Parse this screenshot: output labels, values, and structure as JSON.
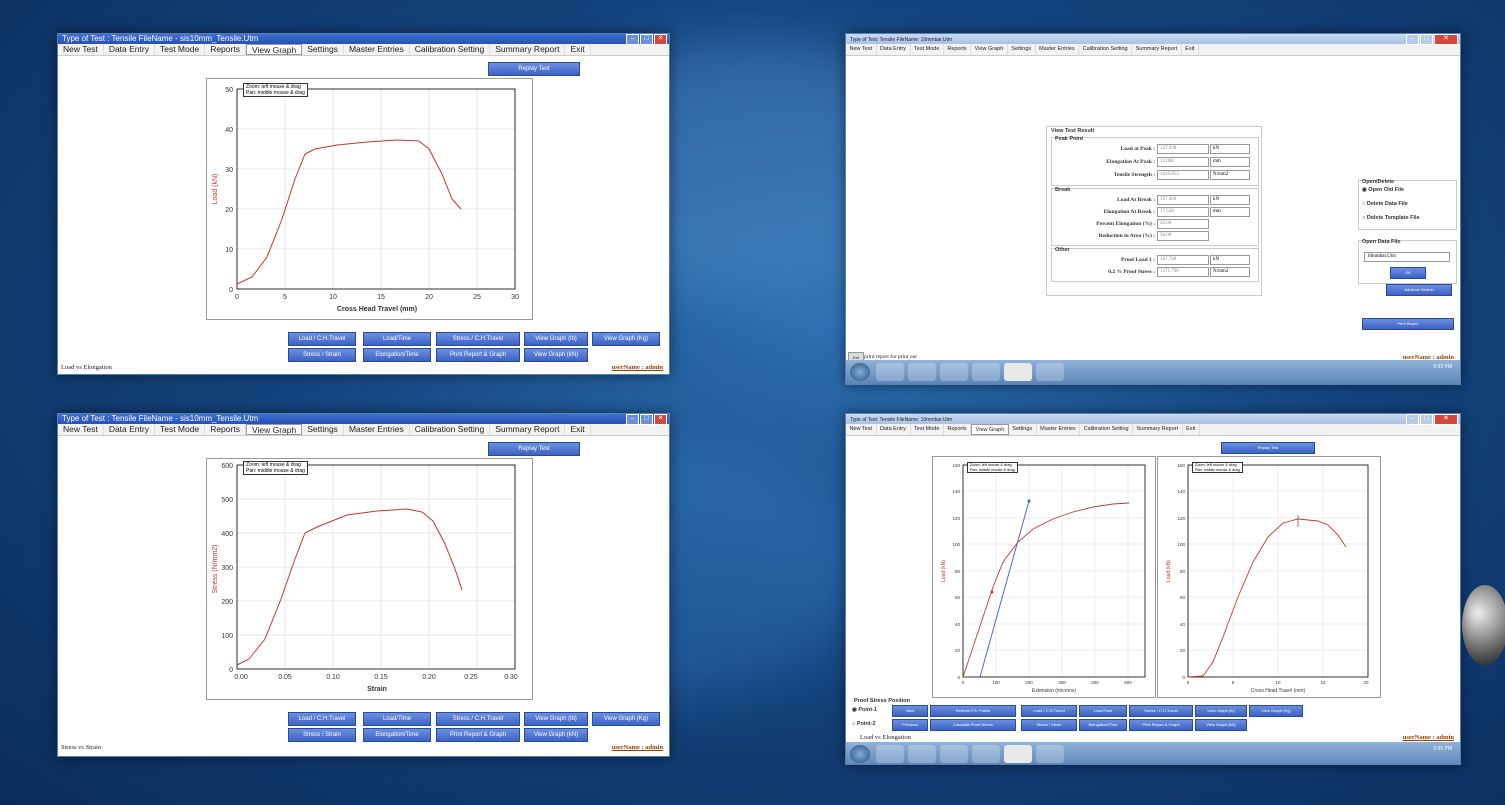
{
  "tl": {
    "title": "Type of Test : Tensile     FileName - sis10mm_Tensile.Utm",
    "menu": [
      "New Test",
      "Data Entry",
      "Test Mode",
      "Reports",
      "View Graph",
      "Settings",
      "Master Entries",
      "Calibration Setting",
      "Summary Report",
      "Exit"
    ],
    "replay": "Replay Test",
    "legend1": "Zoom: left mouse & drag",
    "legend2": "Pan: middle mouse & drag",
    "ylabel": "Load (kN)",
    "xlabel": "Cross Head Travel (mm)",
    "yticks": [
      "50",
      "40",
      "30",
      "20",
      "10",
      "0"
    ],
    "xticks": [
      "0",
      "5",
      "10",
      "15",
      "20",
      "25",
      "30"
    ],
    "buttons": [
      "Load / C.H.Travel",
      "Load/Time",
      "Stress / C.H.Travel",
      "View Graph (lb)",
      "View Graph (Kg)",
      "Stress / Strain",
      "Elongation/Time",
      "Print Report & Graph",
      "View Graph (kN)"
    ],
    "status_left": "Load vs Elongation",
    "status_right": "userName : admin"
  },
  "bl": {
    "title": "Type of Test : Tensile     FileName - sis10mm_Tensile.Utm",
    "menu": [
      "New Test",
      "Data Entry",
      "Test Mode",
      "Reports",
      "View Graph",
      "Settings",
      "Master Entries",
      "Calibration Setting",
      "Summary Report",
      "Exit"
    ],
    "replay": "Replay Test",
    "legend1": "Zoom: left mouse & drag",
    "legend2": "Pan: middle mouse & drag",
    "ylabel": "Stress (N/mm2)",
    "xlabel": "Strain",
    "yticks": [
      "600",
      "500",
      "400",
      "300",
      "200",
      "100",
      "0"
    ],
    "xticks": [
      "0.00",
      "0.05",
      "0.10",
      "0.15",
      "0.20",
      "0.25",
      "0.30"
    ],
    "buttons": [
      "Load / C.H.Travel",
      "Load/Time",
      "Stress / C.H.Travel",
      "View Graph (lb)",
      "View Graph (Kg)",
      "Stress / Strain",
      "Elongation/Time",
      "Print Report & Graph",
      "View Graph (kN)"
    ],
    "status_left": "Stress vs Strain",
    "status_right": "userName : admin"
  },
  "tr": {
    "title": "Type of Test: Tensile     FileName: 10mmbar.Utm",
    "menu": [
      "New Test",
      "Data Entry",
      "Test Mode",
      "Reports",
      "View Graph",
      "Settings",
      "Master Entries",
      "Calibration Setting",
      "Summary Report",
      "Exit"
    ],
    "result_title": "View Test Result",
    "peak_title": "Peak Point",
    "peak": [
      {
        "label": "Load at Peak :",
        "value": "127.930",
        "unit": "kN"
      },
      {
        "label": "Elongation At Peak :",
        "value": "12.060",
        "unit": "mm"
      },
      {
        "label": "Tensile Strength :",
        "value": "1626.852",
        "unit": "N/mm2"
      }
    ],
    "break_title": "Break",
    "break": [
      {
        "label": "Load At Break :",
        "value": "107.400",
        "unit": "kN"
      },
      {
        "label": "Elongation At Break :",
        "value": "17.520",
        "unit": "mm"
      },
      {
        "label": "Percent Elongation (%) :",
        "value": "20.00",
        "unit": ""
      },
      {
        "label": "Reduction in Area (%) :",
        "value": "56.00",
        "unit": ""
      }
    ],
    "other_title": "Other",
    "other": [
      {
        "label": "Proof Load 1 :",
        "value": "107.740",
        "unit": "kN"
      },
      {
        "label": "0.2 % Proof Stress :",
        "value": "1371.790",
        "unit": "N/mm2"
      }
    ],
    "open_title": "Open/Delete",
    "radios": [
      "Open Old File",
      "Delete Data File",
      "Delete Template File"
    ],
    "datafile_title": "Open Data File",
    "datafile_value": "10mmbar.Utm",
    "ok": "OK",
    "advance": "Advance Search",
    "print": "Print Report",
    "status_btn": "Exit",
    "status_left": "print report for print out",
    "status_right": "userName : admin",
    "clock": "5:02 PM"
  },
  "br": {
    "title": "Type of Test: Tensile     FileName: 10mmbar.Utm",
    "menu": [
      "New Test",
      "Data Entry",
      "Test Mode",
      "Reports",
      "View Graph",
      "Settings",
      "Master Entries",
      "Calibration Setting",
      "Summary Report",
      "Exit"
    ],
    "replay": "Replay Test",
    "legend1": "Zoom: left mouse & drag",
    "legend2": "Pan: middle mouse & drag",
    "g1_ylabel": "Load (kN)",
    "g1_xlabel": "Extension (microns)",
    "g1_yticks": [
      "160",
      "140",
      "120",
      "100",
      "80",
      "60",
      "40",
      "20",
      "0"
    ],
    "g1_xticks": [
      "0",
      "100",
      "200",
      "300",
      "400",
      "500"
    ],
    "g2_ylabel": "Load (kN)",
    "g2_xlabel": "Cross Head Travel (mm)",
    "g2_yticks": [
      "160",
      "140",
      "120",
      "100",
      "80",
      "60",
      "40",
      "20",
      "0"
    ],
    "g2_xticks": [
      "0",
      "5",
      "10",
      "15",
      "20"
    ],
    "proof_title": "Proof Stress Position",
    "point1": "Point-1",
    "point2": "Point-2",
    "next": "Next",
    "previous": "Previous",
    "refresh": "Refresh P.S. Points",
    "calc": "Calculate Proof Stress",
    "buttons": [
      "Load / C.H.Travel",
      "Load/Time",
      "Stress / C.H.Travel",
      "View Graph (lb)",
      "View Graph (Kg)",
      "Stress / Strain",
      "Elongation/Time",
      "Print Report & Graph",
      "View Graph (kN)"
    ],
    "status_left": "Load vs Elongation",
    "status_right": "userName : admin",
    "clock": "5:05 PM"
  },
  "colors": {
    "curve": "#c0392b",
    "proof": "#3d5ccc",
    "button": "#4a70d0",
    "accent": "#a04000"
  }
}
